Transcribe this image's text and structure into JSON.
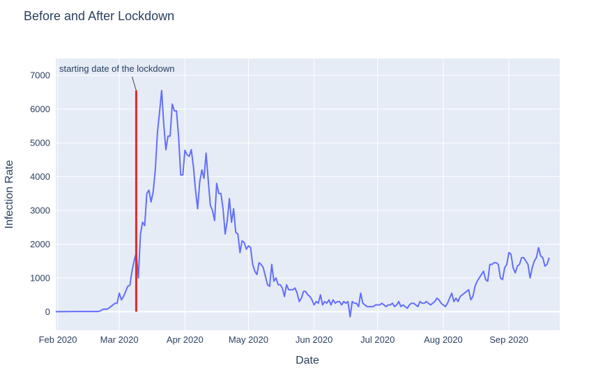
{
  "chart_data": {
    "type": "line",
    "title": "Before and After Lockdown",
    "xlabel": "Date",
    "ylabel": "Infection Rate",
    "x_range": [
      "2020-01-31",
      "2020-09-25"
    ],
    "ylim": [
      -550,
      7500
    ],
    "grid": true,
    "legend": "none",
    "x_ticks": [
      {
        "date": "2020-02-01",
        "label": "Feb 2020"
      },
      {
        "date": "2020-03-01",
        "label": "Mar 2020"
      },
      {
        "date": "2020-04-01",
        "label": "Apr 2020"
      },
      {
        "date": "2020-05-01",
        "label": "May 2020"
      },
      {
        "date": "2020-06-01",
        "label": "Jun 2020"
      },
      {
        "date": "2020-07-01",
        "label": "Jul 2020"
      },
      {
        "date": "2020-08-01",
        "label": "Aug 2020"
      },
      {
        "date": "2020-09-01",
        "label": "Sep 2020"
      }
    ],
    "y_ticks": [
      {
        "value": 0,
        "label": "0"
      },
      {
        "value": 1000,
        "label": "1000"
      },
      {
        "value": 2000,
        "label": "2000"
      },
      {
        "value": 3000,
        "label": "3000"
      },
      {
        "value": 4000,
        "label": "4000"
      },
      {
        "value": 5000,
        "label": "5000"
      },
      {
        "value": 6000,
        "label": "6000"
      },
      {
        "value": 7000,
        "label": "7000"
      }
    ],
    "colors": {
      "line": "#636efa",
      "lockdown": "#e8262a",
      "plot_bg": "#e5ecf6",
      "grid": "#ffffff"
    },
    "lockdown": {
      "date": "2020-03-09",
      "y_top": 6550,
      "annotation": "starting date of the lockdown"
    },
    "series": [
      {
        "points": [
          [
            "2020-01-31",
            0
          ],
          [
            "2020-02-05",
            2
          ],
          [
            "2020-02-10",
            5
          ],
          [
            "2020-02-15",
            5
          ],
          [
            "2020-02-20",
            5
          ],
          [
            "2020-02-21",
            20
          ],
          [
            "2020-02-22",
            60
          ],
          [
            "2020-02-23",
            80
          ],
          [
            "2020-02-24",
            70
          ],
          [
            "2020-02-25",
            100
          ],
          [
            "2020-02-26",
            150
          ],
          [
            "2020-02-27",
            200
          ],
          [
            "2020-02-28",
            250
          ],
          [
            "2020-02-29",
            250
          ],
          [
            "2020-03-01",
            550
          ],
          [
            "2020-03-02",
            350
          ],
          [
            "2020-03-03",
            450
          ],
          [
            "2020-03-04",
            600
          ],
          [
            "2020-03-05",
            750
          ],
          [
            "2020-03-06",
            780
          ],
          [
            "2020-03-07",
            1200
          ],
          [
            "2020-03-08",
            1500
          ],
          [
            "2020-03-09",
            1750
          ],
          [
            "2020-03-10",
            1000
          ],
          [
            "2020-03-11",
            2300
          ],
          [
            "2020-03-12",
            2650
          ],
          [
            "2020-03-13",
            2550
          ],
          [
            "2020-03-14",
            3500
          ],
          [
            "2020-03-15",
            3600
          ],
          [
            "2020-03-16",
            3250
          ],
          [
            "2020-03-17",
            3550
          ],
          [
            "2020-03-18",
            4200
          ],
          [
            "2020-03-19",
            5300
          ],
          [
            "2020-03-20",
            5900
          ],
          [
            "2020-03-21",
            6550
          ],
          [
            "2020-03-22",
            5550
          ],
          [
            "2020-03-23",
            4800
          ],
          [
            "2020-03-24",
            5200
          ],
          [
            "2020-03-25",
            5200
          ],
          [
            "2020-03-26",
            6150
          ],
          [
            "2020-03-27",
            5950
          ],
          [
            "2020-03-28",
            5950
          ],
          [
            "2020-03-29",
            5200
          ],
          [
            "2020-03-30",
            4050
          ],
          [
            "2020-03-31",
            4050
          ],
          [
            "2020-04-01",
            4780
          ],
          [
            "2020-04-02",
            4650
          ],
          [
            "2020-04-03",
            4600
          ],
          [
            "2020-04-04",
            4800
          ],
          [
            "2020-04-05",
            4300
          ],
          [
            "2020-04-06",
            3600
          ],
          [
            "2020-04-07",
            3050
          ],
          [
            "2020-04-08",
            3850
          ],
          [
            "2020-04-09",
            4200
          ],
          [
            "2020-04-10",
            3950
          ],
          [
            "2020-04-11",
            4700
          ],
          [
            "2020-04-12",
            3900
          ],
          [
            "2020-04-13",
            3150
          ],
          [
            "2020-04-14",
            3000
          ],
          [
            "2020-04-15",
            2700
          ],
          [
            "2020-04-16",
            3800
          ],
          [
            "2020-04-17",
            3500
          ],
          [
            "2020-04-18",
            3500
          ],
          [
            "2020-04-19",
            3050
          ],
          [
            "2020-04-20",
            2300
          ],
          [
            "2020-04-21",
            2700
          ],
          [
            "2020-04-22",
            3350
          ],
          [
            "2020-04-23",
            2650
          ],
          [
            "2020-04-24",
            3050
          ],
          [
            "2020-04-25",
            2350
          ],
          [
            "2020-04-26",
            2300
          ],
          [
            "2020-04-27",
            1750
          ],
          [
            "2020-04-28",
            2100
          ],
          [
            "2020-04-29",
            2050
          ],
          [
            "2020-04-30",
            1850
          ],
          [
            "2020-05-01",
            1950
          ],
          [
            "2020-05-02",
            1900
          ],
          [
            "2020-05-03",
            1400
          ],
          [
            "2020-05-04",
            1200
          ],
          [
            "2020-05-05",
            1100
          ],
          [
            "2020-05-06",
            1450
          ],
          [
            "2020-05-07",
            1400
          ],
          [
            "2020-05-08",
            1300
          ],
          [
            "2020-05-09",
            1050
          ],
          [
            "2020-05-10",
            800
          ],
          [
            "2020-05-11",
            750
          ],
          [
            "2020-05-12",
            1400
          ],
          [
            "2020-05-13",
            900
          ],
          [
            "2020-05-14",
            1000
          ],
          [
            "2020-05-15",
            800
          ],
          [
            "2020-05-16",
            800
          ],
          [
            "2020-05-17",
            700
          ],
          [
            "2020-05-18",
            450
          ],
          [
            "2020-05-19",
            800
          ],
          [
            "2020-05-20",
            650
          ],
          [
            "2020-05-21",
            650
          ],
          [
            "2020-05-22",
            650
          ],
          [
            "2020-05-23",
            700
          ],
          [
            "2020-05-24",
            550
          ],
          [
            "2020-05-25",
            300
          ],
          [
            "2020-05-26",
            400
          ],
          [
            "2020-05-27",
            600
          ],
          [
            "2020-05-28",
            600
          ],
          [
            "2020-05-29",
            500
          ],
          [
            "2020-05-30",
            450
          ],
          [
            "2020-05-31",
            350
          ],
          [
            "2020-06-01",
            200
          ],
          [
            "2020-06-02",
            300
          ],
          [
            "2020-06-03",
            250
          ],
          [
            "2020-06-04",
            500
          ],
          [
            "2020-06-05",
            200
          ],
          [
            "2020-06-06",
            300
          ],
          [
            "2020-06-07",
            250
          ],
          [
            "2020-06-08",
            350
          ],
          [
            "2020-06-09",
            200
          ],
          [
            "2020-06-10",
            350
          ],
          [
            "2020-06-11",
            250
          ],
          [
            "2020-06-12",
            300
          ],
          [
            "2020-06-13",
            300
          ],
          [
            "2020-06-14",
            200
          ],
          [
            "2020-06-15",
            300
          ],
          [
            "2020-06-16",
            250
          ],
          [
            "2020-06-17",
            300
          ],
          [
            "2020-06-18",
            -150
          ],
          [
            "2020-06-19",
            300
          ],
          [
            "2020-06-20",
            250
          ],
          [
            "2020-06-21",
            250
          ],
          [
            "2020-06-22",
            150
          ],
          [
            "2020-06-23",
            550
          ],
          [
            "2020-06-24",
            250
          ],
          [
            "2020-06-25",
            200
          ],
          [
            "2020-06-26",
            150
          ],
          [
            "2020-06-27",
            150
          ],
          [
            "2020-06-28",
            150
          ],
          [
            "2020-06-29",
            150
          ],
          [
            "2020-06-30",
            200
          ],
          [
            "2020-07-01",
            200
          ],
          [
            "2020-07-02",
            200
          ],
          [
            "2020-07-03",
            250
          ],
          [
            "2020-07-04",
            200
          ],
          [
            "2020-07-05",
            150
          ],
          [
            "2020-07-06",
            200
          ],
          [
            "2020-07-07",
            200
          ],
          [
            "2020-07-08",
            250
          ],
          [
            "2020-07-09",
            150
          ],
          [
            "2020-07-10",
            200
          ],
          [
            "2020-07-11",
            300
          ],
          [
            "2020-07-12",
            150
          ],
          [
            "2020-07-13",
            200
          ],
          [
            "2020-07-14",
            150
          ],
          [
            "2020-07-15",
            100
          ],
          [
            "2020-07-16",
            200
          ],
          [
            "2020-07-17",
            250
          ],
          [
            "2020-07-18",
            250
          ],
          [
            "2020-07-19",
            200
          ],
          [
            "2020-07-20",
            150
          ],
          [
            "2020-07-21",
            300
          ],
          [
            "2020-07-22",
            250
          ],
          [
            "2020-07-23",
            250
          ],
          [
            "2020-07-24",
            300
          ],
          [
            "2020-07-25",
            250
          ],
          [
            "2020-07-26",
            200
          ],
          [
            "2020-07-27",
            250
          ],
          [
            "2020-07-28",
            300
          ],
          [
            "2020-07-29",
            400
          ],
          [
            "2020-07-30",
            350
          ],
          [
            "2020-07-31",
            250
          ],
          [
            "2020-08-01",
            200
          ],
          [
            "2020-08-02",
            150
          ],
          [
            "2020-08-03",
            250
          ],
          [
            "2020-08-04",
            400
          ],
          [
            "2020-08-05",
            550
          ],
          [
            "2020-08-06",
            300
          ],
          [
            "2020-08-07",
            400
          ],
          [
            "2020-08-08",
            300
          ],
          [
            "2020-08-09",
            450
          ],
          [
            "2020-08-10",
            500
          ],
          [
            "2020-08-11",
            550
          ],
          [
            "2020-08-12",
            600
          ],
          [
            "2020-08-13",
            650
          ],
          [
            "2020-08-14",
            350
          ],
          [
            "2020-08-15",
            450
          ],
          [
            "2020-08-16",
            750
          ],
          [
            "2020-08-17",
            900
          ],
          [
            "2020-08-18",
            1000
          ],
          [
            "2020-08-19",
            1100
          ],
          [
            "2020-08-20",
            1200
          ],
          [
            "2020-08-21",
            950
          ],
          [
            "2020-08-22",
            900
          ],
          [
            "2020-08-23",
            1400
          ],
          [
            "2020-08-24",
            1400
          ],
          [
            "2020-08-25",
            1450
          ],
          [
            "2020-08-26",
            1450
          ],
          [
            "2020-08-27",
            1400
          ],
          [
            "2020-08-28",
            1000
          ],
          [
            "2020-08-29",
            950
          ],
          [
            "2020-08-30",
            1300
          ],
          [
            "2020-08-31",
            1400
          ],
          [
            "2020-09-01",
            1750
          ],
          [
            "2020-09-02",
            1700
          ],
          [
            "2020-09-03",
            1300
          ],
          [
            "2020-09-04",
            1150
          ],
          [
            "2020-09-05",
            1350
          ],
          [
            "2020-09-06",
            1400
          ],
          [
            "2020-09-07",
            1600
          ],
          [
            "2020-09-08",
            1600
          ],
          [
            "2020-09-09",
            1500
          ],
          [
            "2020-09-10",
            1400
          ],
          [
            "2020-09-11",
            1000
          ],
          [
            "2020-09-12",
            1300
          ],
          [
            "2020-09-13",
            1500
          ],
          [
            "2020-09-14",
            1600
          ],
          [
            "2020-09-15",
            1900
          ],
          [
            "2020-09-16",
            1650
          ],
          [
            "2020-09-17",
            1600
          ],
          [
            "2020-09-18",
            1350
          ],
          [
            "2020-09-19",
            1400
          ],
          [
            "2020-09-20",
            1600
          ]
        ]
      }
    ]
  }
}
